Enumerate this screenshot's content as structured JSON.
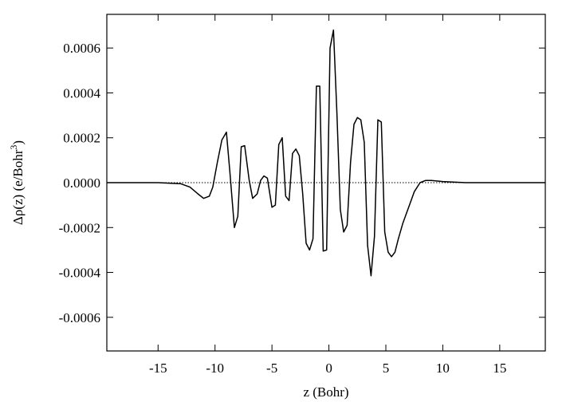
{
  "chart_data": {
    "type": "line",
    "xlabel": "z (Bohr)",
    "ylabel": {
      "main": "Δρ(z) (e/Bohr",
      "sup": "3",
      "end": ")"
    },
    "xlim": [
      -19.5,
      19
    ],
    "ylim": [
      -0.00075,
      0.00075
    ],
    "x_ticks": [
      -15,
      -10,
      -5,
      0,
      5,
      10,
      15
    ],
    "x_tick_labels": [
      "-15",
      "-10",
      "-5",
      "0",
      "5",
      "10",
      "15"
    ],
    "y_ticks": [
      0.0006,
      0.0004,
      0.0002,
      0.0,
      -0.0002,
      -0.0004,
      -0.0006
    ],
    "y_tick_labels": [
      "0.0006",
      "0.0004",
      "0.0002",
      "0.0000",
      "-0.0002",
      "-0.0004",
      "-0.0006"
    ],
    "zero_line": {
      "style": "dotted",
      "y": 0
    },
    "grid": false,
    "series": [
      {
        "color": "#000000",
        "x": [
          -19.5,
          -15,
          -13,
          -12.2,
          -11.5,
          -11,
          -10.5,
          -10.2,
          -9.8,
          -9.4,
          -9.0,
          -8.7,
          -8.3,
          -8.0,
          -7.7,
          -7.4,
          -7.0,
          -6.7,
          -6.3,
          -6.0,
          -5.7,
          -5.4,
          -5.0,
          -4.7,
          -4.4,
          -4.1,
          -3.8,
          -3.5,
          -3.2,
          -2.9,
          -2.6,
          -2.3,
          -2.0,
          -1.7,
          -1.4,
          -1.1,
          -0.8,
          -0.5,
          -0.2,
          0.1,
          0.4,
          0.7,
          1.0,
          1.3,
          1.6,
          1.9,
          2.2,
          2.5,
          2.8,
          3.1,
          3.4,
          3.7,
          4.0,
          4.3,
          4.6,
          4.9,
          5.2,
          5.5,
          5.8,
          6.1,
          6.5,
          7.0,
          7.5,
          8.0,
          8.5,
          9.0,
          10.0,
          12.0,
          15.0,
          19.0
        ],
        "y": [
          0.0,
          0.0,
          -5e-06,
          -2e-05,
          -5e-05,
          -7e-05,
          -6e-05,
          -2e-05,
          9e-05,
          0.00019,
          0.000225,
          5e-05,
          -0.0002,
          -0.00015,
          0.00016,
          0.000165,
          1e-05,
          -7e-05,
          -5e-05,
          1e-05,
          3e-05,
          2e-05,
          -0.00011,
          -0.0001,
          0.00017,
          0.0002,
          -6e-05,
          -8e-05,
          0.00013,
          0.00015,
          0.00012,
          -5e-05,
          -0.00027,
          -0.0003,
          -0.00025,
          0.00043,
          0.00043,
          -0.000305,
          -0.0003,
          0.0006,
          0.00068,
          0.00031,
          -0.00012,
          -0.00022,
          -0.00019,
          9e-05,
          0.00026,
          0.00029,
          0.00028,
          0.00018,
          -0.00028,
          -0.000415,
          -0.00024,
          0.00028,
          0.00027,
          -0.00022,
          -0.00031,
          -0.00033,
          -0.00031,
          -0.00025,
          -0.00018,
          -0.00011,
          -4e-05,
          0.0,
          1e-05,
          1e-05,
          5e-06,
          0.0,
          0.0,
          0.0
        ]
      }
    ]
  }
}
